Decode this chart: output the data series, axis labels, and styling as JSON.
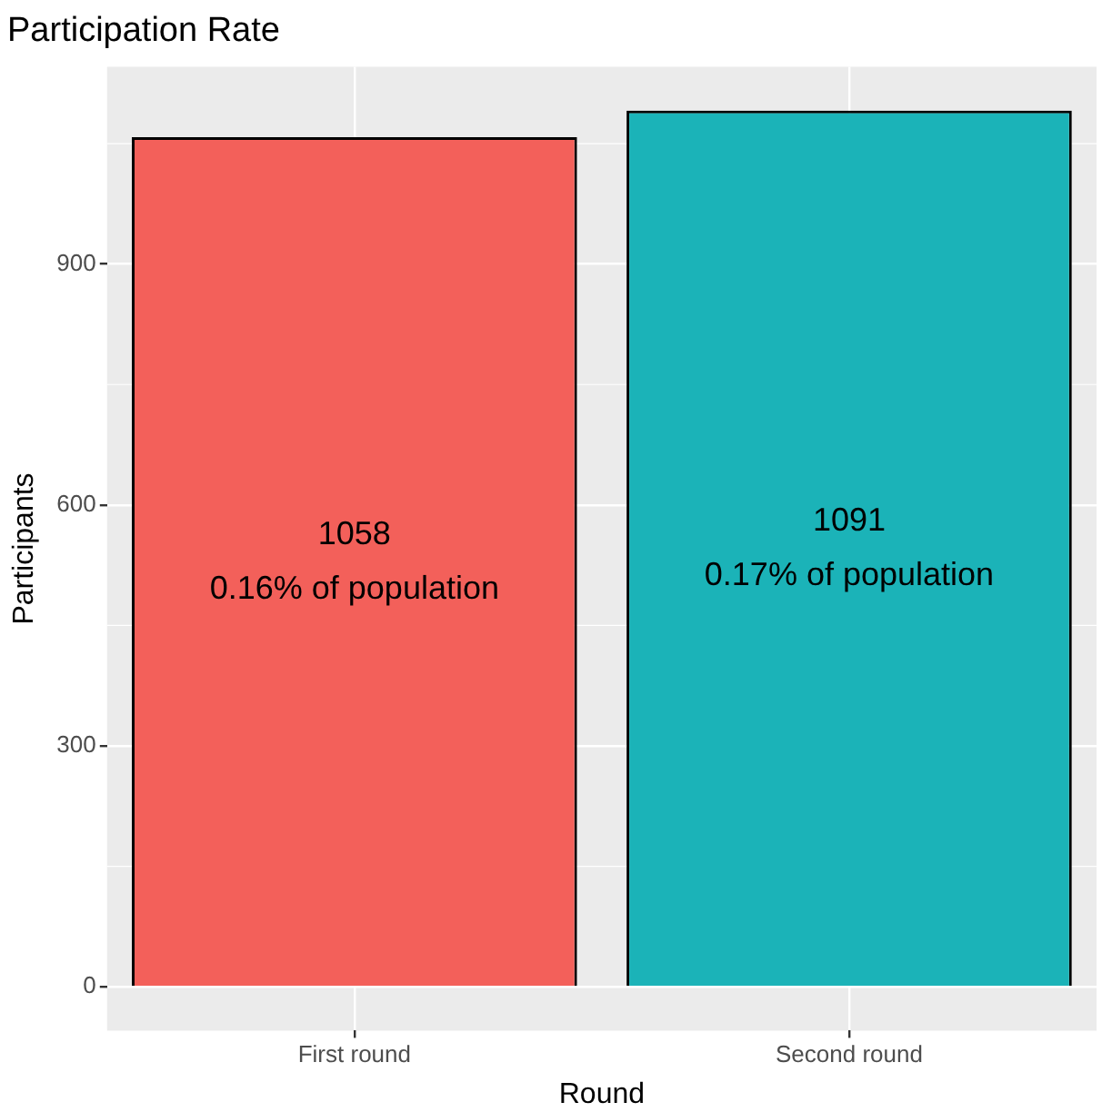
{
  "chart_data": {
    "type": "bar",
    "title": "Participation Rate",
    "xlabel": "Round",
    "ylabel": "Participants",
    "categories": [
      "First round",
      "Second round"
    ],
    "values": [
      1058,
      1091
    ],
    "colors": [
      "#f3605a",
      "#1bb3b8"
    ],
    "value_labels": [
      "1058\n0.16% of population",
      "1091\n0.17% of population"
    ],
    "ylim": [
      -54.55,
      1145.55
    ],
    "yticks": [
      0,
      300,
      600,
      900
    ],
    "grid": true
  }
}
